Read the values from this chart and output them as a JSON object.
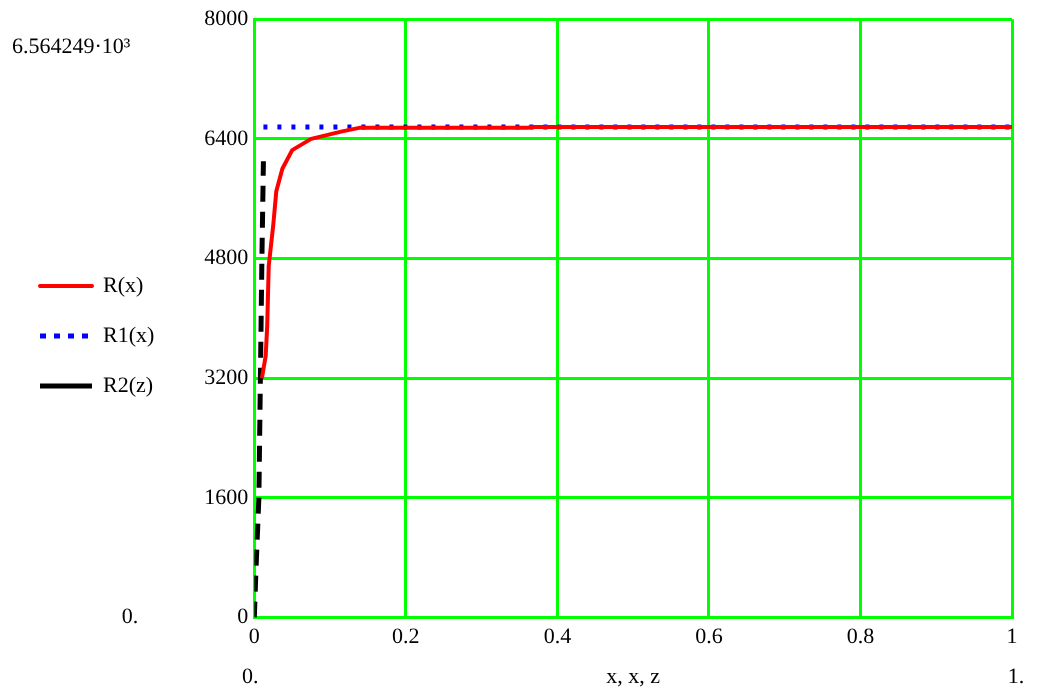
{
  "chart_data": {
    "type": "line",
    "xlabel": "x, x, z",
    "xlim": [
      0,
      1
    ],
    "xticks": [
      0,
      0.2,
      0.4,
      0.6,
      0.8,
      1
    ],
    "ylim": [
      0,
      8000
    ],
    "yticks": [
      0,
      1600,
      3200,
      4800,
      6400,
      8000
    ],
    "grid": true,
    "legend": "left",
    "marker": "none",
    "annotations": [
      "6.564249·10³",
      "0.",
      "0.",
      "1."
    ],
    "series": [
      {
        "name": "R(x)",
        "color": "#ff0000",
        "line_style": "solid",
        "x": [
          0.01,
          0.015,
          0.017,
          0.019,
          0.025,
          0.029,
          0.037,
          0.05,
          0.075,
          0.116,
          0.14,
          0.36,
          0.37,
          1
        ],
        "values": [
          3200,
          3500,
          3900,
          4700,
          5250,
          5700,
          6000,
          6250,
          6400,
          6500,
          6550,
          6550,
          6560,
          6560
        ]
      },
      {
        "name": "R1(x)",
        "color": "#0000ff",
        "line_style": "dotted",
        "x": [
          0.012,
          1
        ],
        "values": [
          6560,
          6560
        ]
      },
      {
        "name": "R2(z)",
        "color": "#000000",
        "line_style": "dashed",
        "x": [
          0,
          0.002,
          0.006,
          0.008,
          0.01,
          0.012
        ],
        "values": [
          0,
          600,
          1600,
          3200,
          4800,
          6100
        ]
      }
    ]
  }
}
